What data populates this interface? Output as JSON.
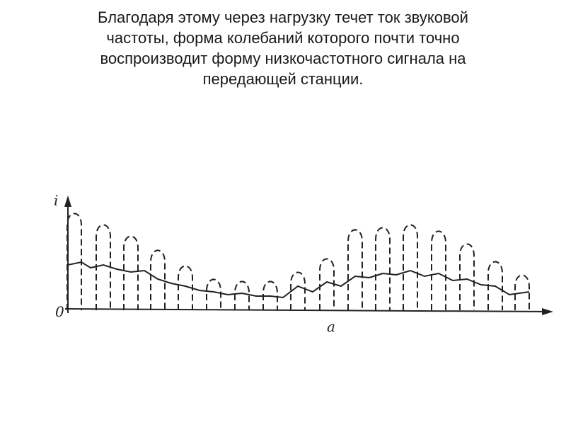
{
  "text": {
    "lines": [
      "Благодаря этому через нагрузку течет ток звуковой",
      "частоты, форма колебаний которого почти точно",
      "воспроизводит форму низкочастотного сигнала на",
      "передающей станции."
    ]
  },
  "figure": {
    "y_axis_label": "i",
    "origin_label": "0",
    "x_axis_label": "a"
  }
}
